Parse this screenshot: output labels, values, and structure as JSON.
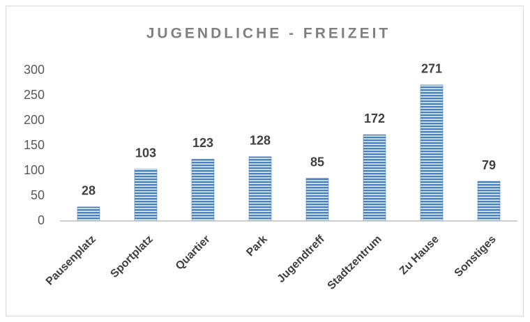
{
  "chart_data": {
    "type": "bar",
    "title": "JUGENDLICHE - FREIZEIT",
    "categories": [
      "Pausenplatz",
      "Sportplatz",
      "Quartier",
      "Park",
      "Jugendtreff",
      "Stadtzentrum",
      "Zu Hause",
      "Sonstiges"
    ],
    "values": [
      28,
      103,
      123,
      128,
      85,
      172,
      271,
      79
    ],
    "color": "#4f81bd",
    "ylim": [
      0,
      300
    ],
    "yticks": [
      0,
      50,
      100,
      150,
      200,
      250,
      300
    ],
    "grid": false
  }
}
